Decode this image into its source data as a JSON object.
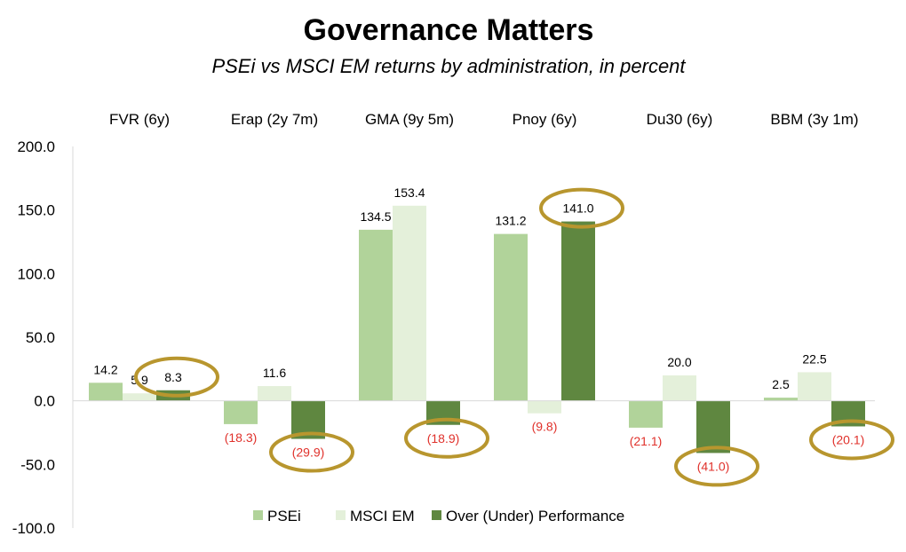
{
  "chart_data": {
    "type": "bar",
    "title": "Governance Matters",
    "subtitle": "PSEi vs MSCI EM returns by administration, in percent",
    "categories": [
      "FVR (6y)",
      "Erap (2y 7m)",
      "GMA (9y 5m)",
      "Pnoy (6y)",
      "Du30 (6y)",
      "BBM (3y 1m)"
    ],
    "series": [
      {
        "name": "PSEi",
        "color": "#b1d39a",
        "values": [
          14.2,
          -18.3,
          134.5,
          131.2,
          -21.1,
          2.5
        ],
        "labels": [
          "14.2",
          "(18.3)",
          "134.5",
          "131.2",
          "(21.1)",
          "2.5"
        ]
      },
      {
        "name": "MSCI EM",
        "color": "#e4f0da",
        "values": [
          5.9,
          11.6,
          153.4,
          -9.8,
          20.0,
          22.5
        ],
        "labels": [
          "5.9",
          "11.6",
          "153.4",
          "(9.8)",
          "20.0",
          "22.5"
        ]
      },
      {
        "name": "Over (Under) Performance",
        "color": "#5f8740",
        "values": [
          8.3,
          -29.9,
          -18.9,
          141.0,
          -41.0,
          -20.1
        ],
        "labels": [
          "8.3",
          "(29.9)",
          "(18.9)",
          "141.0",
          "(41.0)",
          "(20.1)"
        ]
      }
    ],
    "ylim": [
      -100,
      200
    ],
    "yticks": [
      "200.0",
      "150.0",
      "100.0",
      "50.0",
      "0.0",
      "-50.0",
      "-100.0"
    ],
    "ytick_values": [
      200,
      150,
      100,
      50,
      0,
      -50,
      -100
    ],
    "grid": false,
    "legend_position": "bottom",
    "negative_label_color": "#e0312b",
    "highlight_color": "#b8962e"
  }
}
